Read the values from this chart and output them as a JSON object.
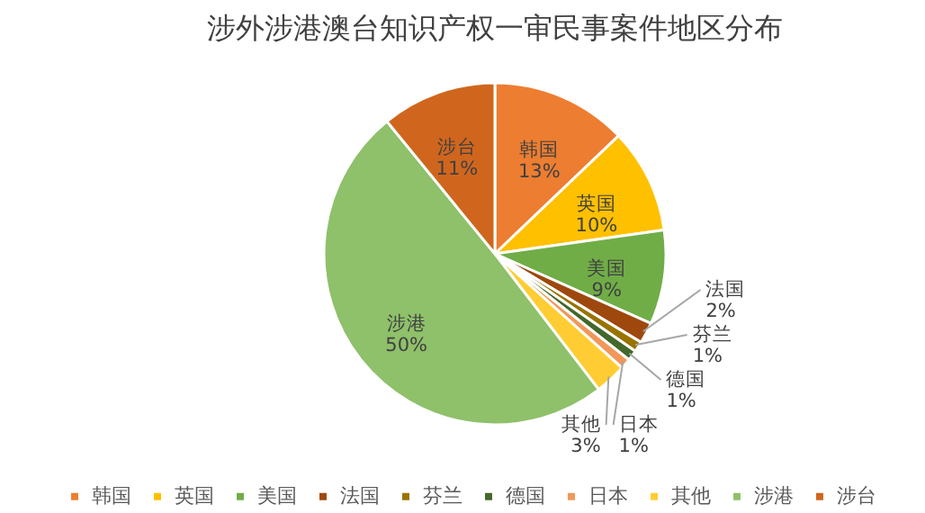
{
  "chart_data": {
    "type": "pie",
    "title": "涉外涉港澳台知识产权一审民事案件地区分布",
    "categories": [
      "韩国",
      "英国",
      "美国",
      "法国",
      "芬兰",
      "德国",
      "日本",
      "其他",
      "涉港",
      "涉台"
    ],
    "values": [
      13,
      10,
      9,
      2,
      1,
      1,
      1,
      3,
      50,
      11
    ],
    "value_labels": [
      "13%",
      "10%",
      "9%",
      "2%",
      "1%",
      "1%",
      "1%",
      "3%",
      "50%",
      "11%"
    ],
    "colors": [
      "#ed7d31",
      "#ffc000",
      "#70ad47",
      "#9e480e",
      "#997300",
      "#43682b",
      "#f1975a",
      "#ffcd33",
      "#8fc06a",
      "#d0661e"
    ],
    "legend": "bottom"
  }
}
